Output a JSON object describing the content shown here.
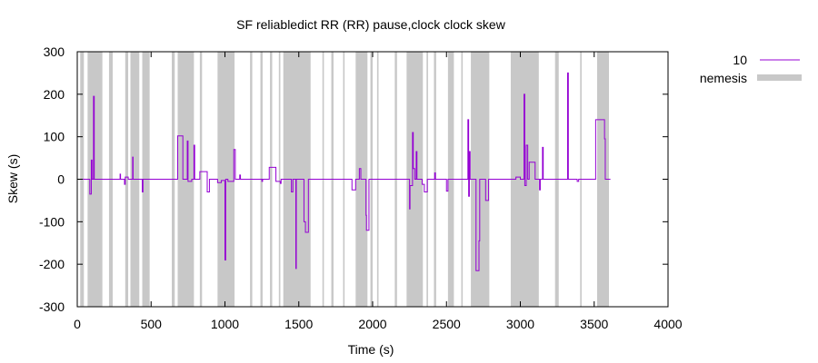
{
  "chart_data": {
    "type": "line",
    "title": "SF reliabledict RR (RR) pause,clock clock skew",
    "xlabel": "Time (s)",
    "ylabel": "Skew (s)",
    "xlim": [
      0,
      4000
    ],
    "ylim": [
      -300,
      300
    ],
    "x_ticks": [
      "0",
      "500",
      "1000",
      "1500",
      "2000",
      "2500",
      "3000",
      "3500",
      "4000"
    ],
    "y_ticks": [
      "300",
      "200",
      "100",
      "0",
      "-100",
      "-200",
      "-300"
    ],
    "grid": false,
    "legend_position": "top-right-outside",
    "colors": {
      "series": "#9400d3",
      "nemesis": "#c8c8c8"
    },
    "nemesis_label": "nemesis",
    "nemesis_intervals": [
      [
        20,
        45
      ],
      [
        70,
        170
      ],
      [
        215,
        240
      ],
      [
        325,
        345
      ],
      [
        360,
        420
      ],
      [
        440,
        490
      ],
      [
        640,
        660
      ],
      [
        680,
        790
      ],
      [
        830,
        845
      ],
      [
        950,
        1065
      ],
      [
        1170,
        1185
      ],
      [
        1240,
        1255
      ],
      [
        1305,
        1320
      ],
      [
        1365,
        1375
      ],
      [
        1395,
        1580
      ],
      [
        1660,
        1670
      ],
      [
        1720,
        1735
      ],
      [
        1800,
        1810
      ],
      [
        1885,
        1965
      ],
      [
        1985,
        2000
      ],
      [
        2030,
        2040
      ],
      [
        2150,
        2165
      ],
      [
        2230,
        2340
      ],
      [
        2365,
        2375
      ],
      [
        2415,
        2430
      ],
      [
        2510,
        2550
      ],
      [
        2600,
        2610
      ],
      [
        2665,
        2790
      ],
      [
        2935,
        3125
      ],
      [
        3235,
        3260
      ],
      [
        3405,
        3415
      ],
      [
        3520,
        3600
      ]
    ],
    "series": [
      {
        "name": "10",
        "points": [
          [
            0,
            0
          ],
          [
            85,
            0
          ],
          [
            85,
            -35
          ],
          [
            95,
            -35
          ],
          [
            95,
            45
          ],
          [
            100,
            45
          ],
          [
            100,
            0
          ],
          [
            110,
            0
          ],
          [
            110,
            195
          ],
          [
            115,
            195
          ],
          [
            115,
            0
          ],
          [
            290,
            0
          ],
          [
            290,
            12
          ],
          [
            293,
            12
          ],
          [
            293,
            0
          ],
          [
            320,
            0
          ],
          [
            320,
            -12
          ],
          [
            325,
            -12
          ],
          [
            325,
            5
          ],
          [
            345,
            5
          ],
          [
            345,
            0
          ],
          [
            375,
            0
          ],
          [
            375,
            52
          ],
          [
            378,
            52
          ],
          [
            378,
            0
          ],
          [
            440,
            0
          ],
          [
            440,
            -30
          ],
          [
            445,
            -30
          ],
          [
            445,
            0
          ],
          [
            680,
            0
          ],
          [
            680,
            102
          ],
          [
            715,
            102
          ],
          [
            715,
            0
          ],
          [
            745,
            0
          ],
          [
            745,
            90
          ],
          [
            750,
            90
          ],
          [
            750,
            -5
          ],
          [
            775,
            -5
          ],
          [
            775,
            0
          ],
          [
            790,
            0
          ],
          [
            790,
            80
          ],
          [
            795,
            80
          ],
          [
            795,
            0
          ],
          [
            830,
            0
          ],
          [
            830,
            18
          ],
          [
            880,
            18
          ],
          [
            880,
            -30
          ],
          [
            895,
            -30
          ],
          [
            895,
            0
          ],
          [
            950,
            0
          ],
          [
            950,
            -8
          ],
          [
            975,
            -8
          ],
          [
            975,
            -3
          ],
          [
            1000,
            -3
          ],
          [
            1000,
            -190
          ],
          [
            1005,
            -190
          ],
          [
            1005,
            0
          ],
          [
            1020,
            0
          ],
          [
            1020,
            -5
          ],
          [
            1060,
            -5
          ],
          [
            1060,
            70
          ],
          [
            1070,
            70
          ],
          [
            1070,
            0
          ],
          [
            1100,
            0
          ],
          [
            1100,
            10
          ],
          [
            1105,
            10
          ],
          [
            1105,
            0
          ],
          [
            1250,
            0
          ],
          [
            1250,
            -5
          ],
          [
            1255,
            -5
          ],
          [
            1255,
            0
          ],
          [
            1300,
            0
          ],
          [
            1300,
            28
          ],
          [
            1345,
            28
          ],
          [
            1345,
            -5
          ],
          [
            1375,
            -5
          ],
          [
            1375,
            -10
          ],
          [
            1380,
            -10
          ],
          [
            1380,
            0
          ],
          [
            1450,
            0
          ],
          [
            1450,
            -30
          ],
          [
            1460,
            -30
          ],
          [
            1460,
            0
          ],
          [
            1480,
            0
          ],
          [
            1480,
            -210
          ],
          [
            1483,
            -210
          ],
          [
            1483,
            0
          ],
          [
            1535,
            0
          ],
          [
            1535,
            -100
          ],
          [
            1545,
            -100
          ],
          [
            1545,
            -125
          ],
          [
            1565,
            -125
          ],
          [
            1565,
            0
          ],
          [
            1860,
            0
          ],
          [
            1860,
            -25
          ],
          [
            1885,
            -25
          ],
          [
            1885,
            0
          ],
          [
            1910,
            0
          ],
          [
            1910,
            25
          ],
          [
            1920,
            25
          ],
          [
            1920,
            0
          ],
          [
            1955,
            0
          ],
          [
            1955,
            -85
          ],
          [
            1958,
            -85
          ],
          [
            1958,
            -120
          ],
          [
            1975,
            -120
          ],
          [
            1975,
            0
          ],
          [
            2250,
            0
          ],
          [
            2250,
            -70
          ],
          [
            2253,
            -70
          ],
          [
            2253,
            -15
          ],
          [
            2270,
            -15
          ],
          [
            2270,
            110
          ],
          [
            2275,
            110
          ],
          [
            2275,
            25
          ],
          [
            2285,
            25
          ],
          [
            2285,
            0
          ],
          [
            2295,
            0
          ],
          [
            2295,
            65
          ],
          [
            2300,
            65
          ],
          [
            2300,
            0
          ],
          [
            2335,
            0
          ],
          [
            2335,
            -12
          ],
          [
            2350,
            -12
          ],
          [
            2350,
            -30
          ],
          [
            2370,
            -30
          ],
          [
            2370,
            0
          ],
          [
            2420,
            0
          ],
          [
            2420,
            15
          ],
          [
            2425,
            15
          ],
          [
            2425,
            0
          ],
          [
            2500,
            0
          ],
          [
            2500,
            -28
          ],
          [
            2510,
            -28
          ],
          [
            2510,
            0
          ],
          [
            2645,
            0
          ],
          [
            2645,
            140
          ],
          [
            2650,
            140
          ],
          [
            2650,
            -40
          ],
          [
            2655,
            -40
          ],
          [
            2655,
            65
          ],
          [
            2660,
            65
          ],
          [
            2660,
            0
          ],
          [
            2700,
            0
          ],
          [
            2700,
            -215
          ],
          [
            2720,
            -215
          ],
          [
            2720,
            -145
          ],
          [
            2725,
            -145
          ],
          [
            2725,
            0
          ],
          [
            2765,
            0
          ],
          [
            2765,
            -50
          ],
          [
            2785,
            -50
          ],
          [
            2785,
            0
          ],
          [
            2970,
            0
          ],
          [
            2970,
            5
          ],
          [
            3000,
            5
          ],
          [
            3000,
            0
          ],
          [
            3025,
            0
          ],
          [
            3025,
            200
          ],
          [
            3030,
            200
          ],
          [
            3030,
            -15
          ],
          [
            3040,
            -15
          ],
          [
            3040,
            80
          ],
          [
            3050,
            80
          ],
          [
            3050,
            0
          ],
          [
            3060,
            0
          ],
          [
            3060,
            40
          ],
          [
            3100,
            40
          ],
          [
            3100,
            0
          ],
          [
            3130,
            0
          ],
          [
            3130,
            -25
          ],
          [
            3135,
            -25
          ],
          [
            3135,
            0
          ],
          [
            3150,
            0
          ],
          [
            3150,
            75
          ],
          [
            3155,
            75
          ],
          [
            3155,
            0
          ],
          [
            3320,
            0
          ],
          [
            3320,
            250
          ],
          [
            3325,
            250
          ],
          [
            3325,
            0
          ],
          [
            3385,
            0
          ],
          [
            3385,
            -5
          ],
          [
            3395,
            -5
          ],
          [
            3395,
            0
          ],
          [
            3510,
            0
          ],
          [
            3510,
            140
          ],
          [
            3570,
            140
          ],
          [
            3570,
            95
          ],
          [
            3575,
            95
          ],
          [
            3575,
            0
          ],
          [
            3610,
            0
          ]
        ]
      }
    ]
  }
}
